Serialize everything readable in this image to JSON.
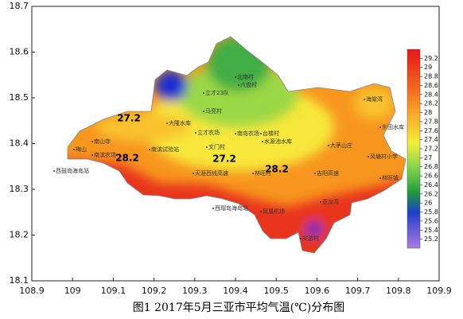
{
  "figure": {
    "caption": "图1    2017年5月三亚市平均气温(℃)分布图",
    "xlim": [
      108.9,
      109.9
    ],
    "ylim": [
      18.1,
      18.7
    ],
    "xticks": [
      108.9,
      109,
      109.1,
      109.2,
      109.3,
      109.4,
      109.5,
      109.6,
      109.7,
      109.8,
      109.9
    ],
    "yticks": [
      18.1,
      18.2,
      18.3,
      18.4,
      18.5,
      18.6,
      18.7
    ],
    "colorbar": {
      "lim": [
        25,
        29.4
      ],
      "ticks": [
        29.2,
        29,
        28.8,
        28.6,
        28.4,
        28.2,
        28,
        27.8,
        27.6,
        27.4,
        27.2,
        27,
        26.8,
        26.6,
        26.4,
        26.2,
        26,
        25.8,
        25.6,
        25.4,
        25.2
      ]
    },
    "contour_labels": [
      "27.2",
      "28.2",
      "27.2",
      "28.2"
    ],
    "places": [
      "北南村",
      "六盘村",
      "立才23队",
      "立才农场",
      "马亮村",
      "南岛农场",
      "台楼村",
      "文门村",
      "水源池水库",
      "大隆水库",
      "南山寺",
      "南滨农场",
      "梅山",
      "南滨试验站",
      "天涯西线高速",
      "林旺村",
      "吉阳高速",
      "海棠湾",
      "东田水库",
      "大茅山庄",
      "风塘村小学",
      "林旺镇",
      "西鼓岛海岛站",
      "西瑁岛海岛站",
      "凤凰机场",
      "亚龙湾",
      "安游村"
    ]
  }
}
